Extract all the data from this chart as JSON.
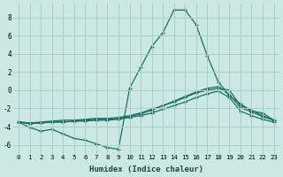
{
  "xlabel": "Humidex (Indice chaleur)",
  "ylabel": "",
  "bg_color": "#cce8e4",
  "grid_color": "#a8cdc8",
  "line_color": "#1a6e62",
  "xlim": [
    -0.5,
    23.5
  ],
  "ylim": [
    -7,
    9.5
  ],
  "xticks": [
    0,
    1,
    2,
    3,
    4,
    5,
    6,
    7,
    8,
    9,
    10,
    11,
    12,
    13,
    14,
    15,
    16,
    17,
    18,
    19,
    20,
    21,
    22,
    23
  ],
  "yticks": [
    -6,
    -4,
    -2,
    0,
    2,
    4,
    6,
    8
  ],
  "series": [
    {
      "x": [
        0,
        1,
        2,
        3,
        4,
        5,
        6,
        7,
        8,
        9,
        10,
        11,
        12,
        13,
        14,
        15,
        16,
        17,
        18,
        19,
        20,
        21,
        22,
        23
      ],
      "y": [
        -3.5,
        -4.1,
        -4.5,
        -4.3,
        -4.8,
        -5.3,
        -5.5,
        -5.9,
        -6.3,
        -6.5,
        0.2,
        2.5,
        4.8,
        6.3,
        8.8,
        8.8,
        7.2,
        3.8,
        0.9,
        -0.6,
        -1.5,
        -2.3,
        -2.5,
        -3.3
      ]
    },
    {
      "x": [
        0,
        1,
        2,
        3,
        4,
        5,
        6,
        7,
        8,
        9,
        10,
        11,
        12,
        13,
        14,
        15,
        16,
        17,
        18,
        19,
        20,
        21,
        22,
        23
      ],
      "y": [
        -3.5,
        -3.7,
        -3.6,
        -3.5,
        -3.5,
        -3.4,
        -3.3,
        -3.2,
        -3.2,
        -3.1,
        -2.9,
        -2.6,
        -2.2,
        -1.7,
        -1.3,
        -0.8,
        -0.3,
        0.0,
        0.2,
        0.0,
        -1.7,
        -2.2,
        -2.8,
        -3.3
      ]
    },
    {
      "x": [
        0,
        1,
        2,
        3,
        4,
        5,
        6,
        7,
        8,
        9,
        10,
        11,
        12,
        13,
        14,
        15,
        16,
        17,
        18,
        19,
        20,
        21,
        22,
        23
      ],
      "y": [
        -3.5,
        -3.6,
        -3.5,
        -3.4,
        -3.3,
        -3.3,
        -3.2,
        -3.1,
        -3.1,
        -3.0,
        -2.8,
        -2.5,
        -2.1,
        -1.7,
        -1.2,
        -0.7,
        -0.2,
        0.2,
        0.4,
        -0.5,
        -1.9,
        -2.4,
        -2.9,
        -3.3
      ]
    },
    {
      "x": [
        0,
        1,
        2,
        3,
        4,
        5,
        6,
        7,
        8,
        9,
        10,
        11,
        12,
        13,
        14,
        15,
        16,
        17,
        18,
        19,
        20,
        21,
        22,
        23
      ],
      "y": [
        -3.5,
        -3.6,
        -3.6,
        -3.5,
        -3.5,
        -3.4,
        -3.4,
        -3.3,
        -3.3,
        -3.2,
        -3.0,
        -2.8,
        -2.5,
        -2.1,
        -1.7,
        -1.3,
        -0.8,
        -0.4,
        -0.1,
        -0.8,
        -2.3,
        -2.8,
        -3.2,
        -3.5
      ]
    }
  ]
}
